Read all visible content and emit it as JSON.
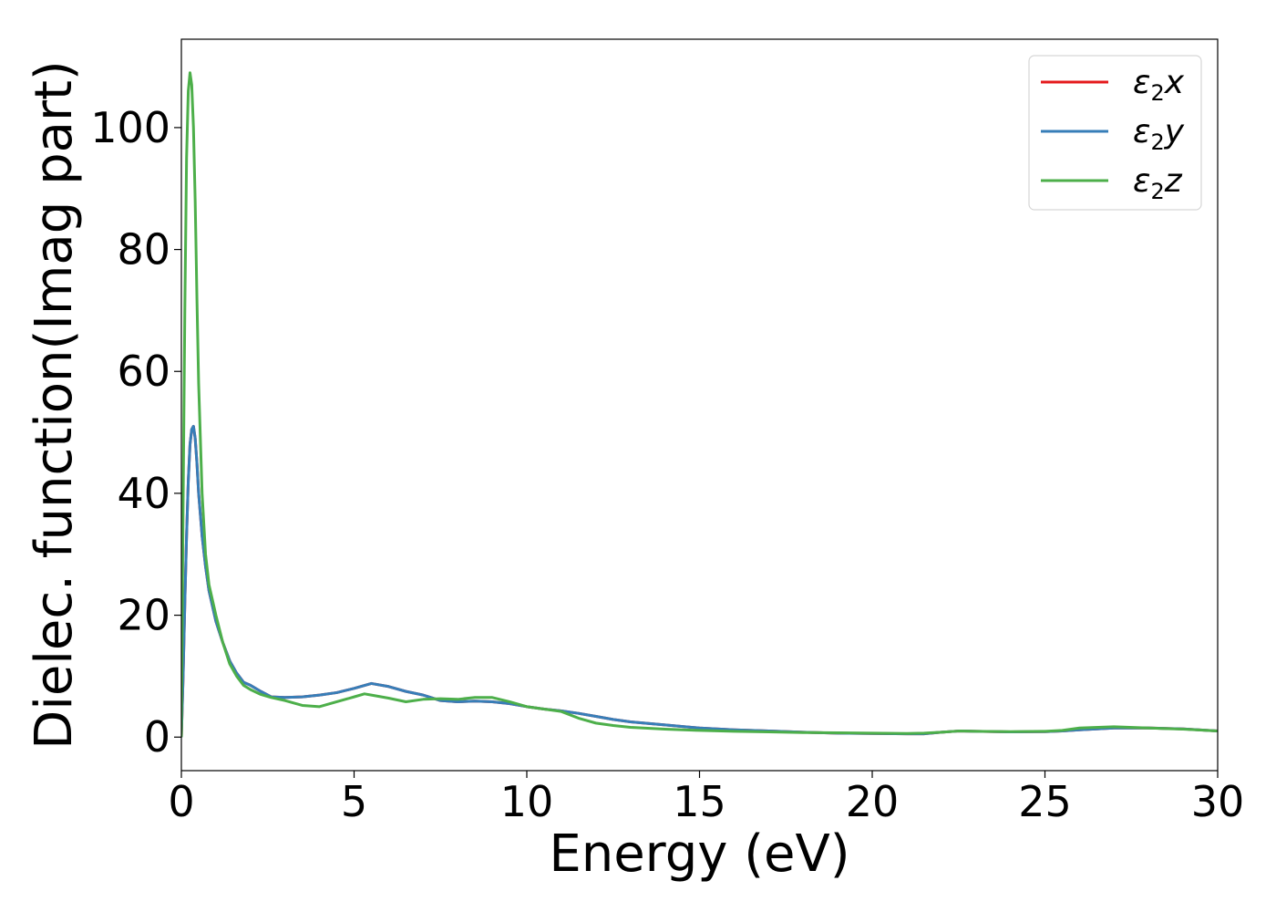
{
  "chart_data": {
    "type": "line",
    "title": "",
    "xlabel": "Energy (eV)",
    "ylabel": "Dielec. function(Imag part)",
    "xlim": [
      0,
      30
    ],
    "ylim": [
      -5.5,
      114.5
    ],
    "xticks": [
      0,
      5,
      10,
      15,
      20,
      25,
      30
    ],
    "yticks": [
      0,
      20,
      40,
      60,
      80,
      100
    ],
    "grid": false,
    "legend_position": "top-right",
    "series": [
      {
        "name": "ε2x",
        "legend_base": "ε",
        "legend_sub": "2",
        "legend_tail": "x",
        "color": "#e41a1c",
        "x": [
          0,
          0.05,
          0.1,
          0.15,
          0.2,
          0.25,
          0.3,
          0.35,
          0.4,
          0.45,
          0.5,
          0.6,
          0.7,
          0.8,
          1.0,
          1.2,
          1.4,
          1.6,
          1.8,
          2.0,
          2.3,
          2.6,
          3.0,
          3.5,
          4.0,
          4.5,
          5.0,
          5.5,
          6.0,
          6.5,
          7.0,
          7.5,
          8.0,
          8.5,
          9.0,
          9.5,
          10.0,
          10.5,
          11.0,
          11.5,
          12.0,
          12.5,
          13.0,
          14.0,
          15.0,
          16.0,
          17.0,
          18.0,
          19.0,
          20.0,
          21.0,
          21.5,
          22.0,
          22.5,
          23.0,
          24.0,
          25.0,
          25.5,
          26.0,
          27.0,
          28.0,
          29.0,
          30.0
        ],
        "values": [
          0,
          10,
          22,
          33,
          42,
          48,
          50.5,
          51,
          49,
          45,
          40,
          33,
          28,
          24,
          19,
          15.5,
          12.5,
          10.5,
          9,
          8.5,
          7.5,
          6.6,
          6.5,
          6.6,
          6.9,
          7.3,
          8.0,
          8.8,
          8.3,
          7.5,
          6.9,
          6.0,
          5.8,
          5.9,
          5.8,
          5.5,
          5.0,
          4.6,
          4.3,
          3.9,
          3.4,
          2.9,
          2.5,
          2.0,
          1.5,
          1.2,
          1.0,
          0.8,
          0.65,
          0.6,
          0.55,
          0.55,
          0.8,
          1.0,
          0.95,
          0.85,
          0.9,
          1.0,
          1.2,
          1.5,
          1.5,
          1.35,
          1.0
        ]
      },
      {
        "name": "ε2y",
        "legend_base": "ε",
        "legend_sub": "2",
        "legend_tail": "y",
        "color": "#377eb8",
        "x": [
          0,
          0.05,
          0.1,
          0.15,
          0.2,
          0.25,
          0.3,
          0.35,
          0.4,
          0.45,
          0.5,
          0.6,
          0.7,
          0.8,
          1.0,
          1.2,
          1.4,
          1.6,
          1.8,
          2.0,
          2.3,
          2.6,
          3.0,
          3.5,
          4.0,
          4.5,
          5.0,
          5.5,
          6.0,
          6.5,
          7.0,
          7.5,
          8.0,
          8.5,
          9.0,
          9.5,
          10.0,
          10.5,
          11.0,
          11.5,
          12.0,
          12.5,
          13.0,
          14.0,
          15.0,
          16.0,
          17.0,
          18.0,
          19.0,
          20.0,
          21.0,
          21.5,
          22.0,
          22.5,
          23.0,
          24.0,
          25.0,
          25.5,
          26.0,
          27.0,
          28.0,
          29.0,
          30.0
        ],
        "values": [
          0,
          10,
          22,
          33,
          42,
          48,
          50.5,
          51,
          49,
          45,
          40,
          33,
          28,
          24,
          19,
          15.5,
          12.5,
          10.5,
          9,
          8.5,
          7.5,
          6.6,
          6.5,
          6.6,
          6.9,
          7.3,
          8.0,
          8.8,
          8.3,
          7.5,
          6.9,
          6.0,
          5.8,
          5.9,
          5.8,
          5.5,
          5.0,
          4.6,
          4.3,
          3.9,
          3.4,
          2.9,
          2.5,
          2.0,
          1.5,
          1.2,
          1.0,
          0.8,
          0.65,
          0.6,
          0.55,
          0.55,
          0.8,
          1.0,
          0.95,
          0.85,
          0.9,
          1.0,
          1.2,
          1.5,
          1.5,
          1.35,
          1.0
        ]
      },
      {
        "name": "ε2z",
        "legend_base": "ε",
        "legend_sub": "2",
        "legend_tail": "z",
        "color": "#4daf4a",
        "x": [
          0,
          0.05,
          0.1,
          0.15,
          0.2,
          0.25,
          0.3,
          0.35,
          0.4,
          0.45,
          0.5,
          0.6,
          0.7,
          0.8,
          1.0,
          1.2,
          1.4,
          1.6,
          1.8,
          2.0,
          2.3,
          2.6,
          3.0,
          3.5,
          4.0,
          4.5,
          5.0,
          5.3,
          5.5,
          6.0,
          6.5,
          7.0,
          7.5,
          8.0,
          8.5,
          9.0,
          9.5,
          10.0,
          10.5,
          11.0,
          11.5,
          12.0,
          12.5,
          13.0,
          14.0,
          15.0,
          16.0,
          17.0,
          18.0,
          19.0,
          20.0,
          21.0,
          21.5,
          22.0,
          22.5,
          23.0,
          24.0,
          25.0,
          25.5,
          26.0,
          27.0,
          28.0,
          29.0,
          30.0
        ],
        "values": [
          0,
          38,
          70,
          95,
          106,
          109,
          107,
          100,
          88,
          72,
          58,
          40,
          30,
          25,
          20,
          15.5,
          12,
          10,
          8.5,
          7.8,
          7,
          6.5,
          6.0,
          5.2,
          5.0,
          5.8,
          6.6,
          7.1,
          6.9,
          6.4,
          5.8,
          6.2,
          6.3,
          6.2,
          6.5,
          6.5,
          5.8,
          5.0,
          4.6,
          4.2,
          3.1,
          2.3,
          1.9,
          1.6,
          1.3,
          1.1,
          0.95,
          0.85,
          0.75,
          0.7,
          0.65,
          0.6,
          0.65,
          0.8,
          1.0,
          0.95,
          0.9,
          0.95,
          1.1,
          1.5,
          1.7,
          1.5,
          1.3,
          1.0
        ]
      }
    ]
  }
}
